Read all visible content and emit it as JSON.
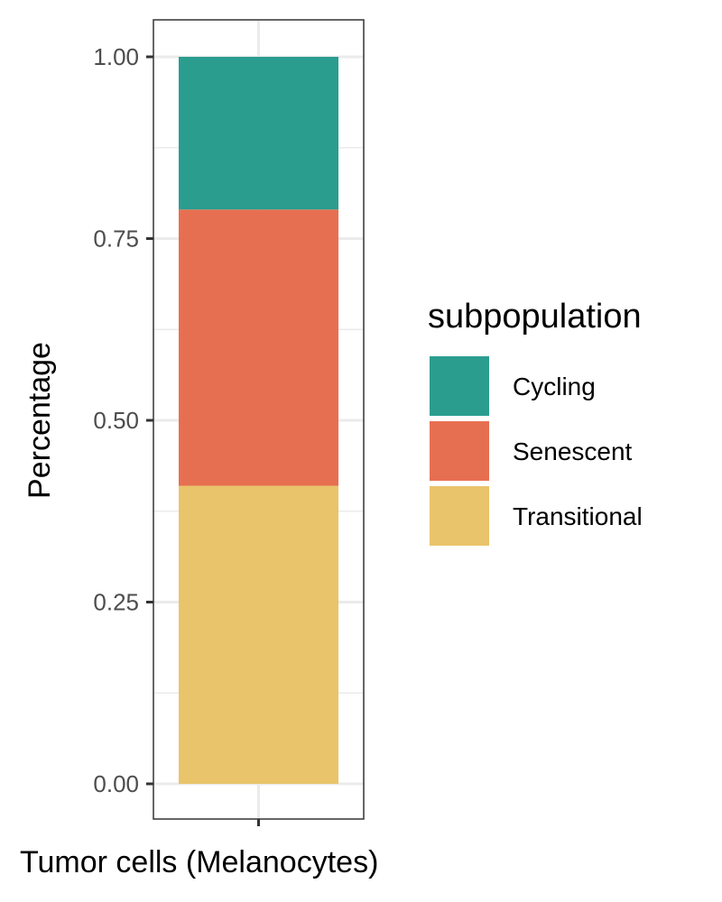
{
  "chart_data": {
    "type": "bar",
    "stacked": true,
    "categories": [
      "Tumor cells (Melanocytes)"
    ],
    "series": [
      {
        "name": "Transitional",
        "values": [
          0.41
        ],
        "color": "#E9C46A"
      },
      {
        "name": "Senescent",
        "values": [
          0.38
        ],
        "color": "#E76F51"
      },
      {
        "name": "Cycling",
        "values": [
          0.21
        ],
        "color": "#2A9D8F"
      }
    ],
    "xlabel": "Tumor cells (Melanocytes)",
    "ylabel": "Percentage",
    "ylim": [
      0,
      1
    ],
    "yticks": [
      "0.00",
      "0.25",
      "0.50",
      "0.75",
      "1.00"
    ],
    "grid": true,
    "legend": {
      "title": "subpopulation",
      "position": "right",
      "order": [
        "Cycling",
        "Senescent",
        "Transitional"
      ]
    }
  }
}
